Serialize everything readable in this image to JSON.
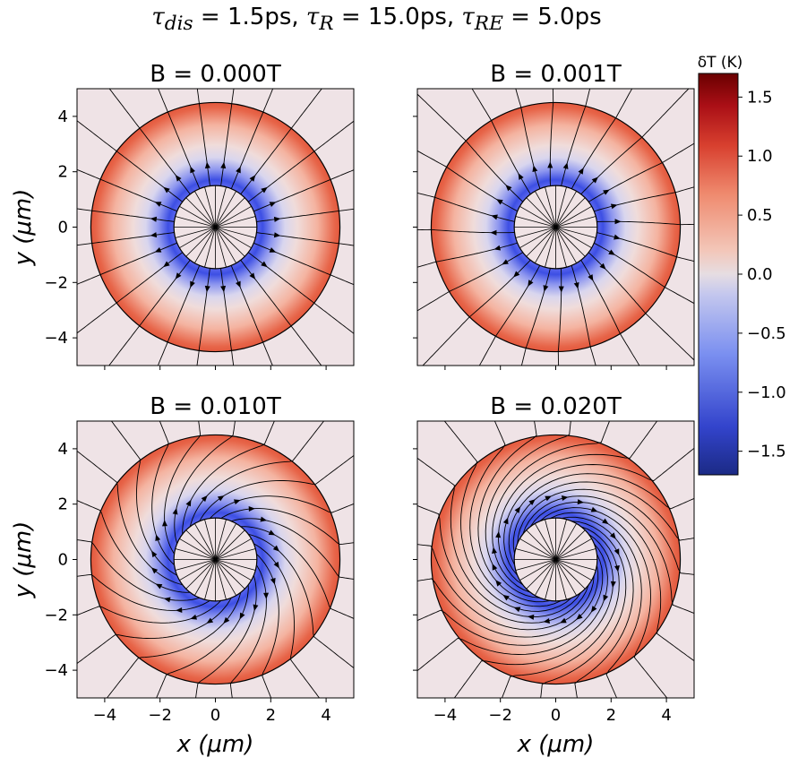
{
  "figure": {
    "suptitle": {
      "dis_sym": "τ",
      "dis_sub": "dis",
      "dis_val": " =  1.5ps, ",
      "r_sym": "τ",
      "r_sub": "R",
      "r_val": " =  15.0ps, ",
      "re_sym": "τ",
      "re_sub": "RE",
      "re_val": " =  5.0ps"
    },
    "xlabel": "x (μm)",
    "ylabel": "y (μm)",
    "colorbar": {
      "label": "δT (K)",
      "ticks": [
        "1.5",
        "1.0",
        "0.5",
        "0.0",
        "−0.5",
        "−1.0",
        "−1.5"
      ]
    },
    "colors": {
      "cold": "#1f33e0",
      "neutral": "#ecdde2",
      "hot": "#e0583f",
      "background": "#efe3e6",
      "lines": "#000000"
    }
  },
  "chart_data": [
    {
      "type": "heatmap",
      "title": "B =  0.000T",
      "B_tesla": 0.0,
      "rotation_factor": 0.0,
      "xlim": [
        -5,
        5
      ],
      "ylim": [
        -5,
        5
      ],
      "xticks": [
        -4,
        -2,
        0,
        2,
        4
      ],
      "yticks": [
        -4,
        -2,
        0,
        2,
        4
      ],
      "inner_radius_um": 1.5,
      "outer_radius_um": 4.5,
      "colorbar_range": [
        -1.7,
        1.7
      ],
      "field": "radial streamlines from inner disk outward; cold ring (~-1.5 K) near r=1.5 μm, warm (~+0.6 K) near r=4.5 μm"
    },
    {
      "type": "heatmap",
      "title": "B =  0.001T",
      "B_tesla": 0.001,
      "rotation_factor": 0.1,
      "xlim": [
        -5,
        5
      ],
      "ylim": [
        -5,
        5
      ],
      "xticks": [
        -4,
        -2,
        0,
        2,
        4
      ],
      "yticks": [
        -4,
        -2,
        0,
        2,
        4
      ],
      "inner_radius_um": 1.5,
      "outer_radius_um": 4.5,
      "colorbar_range": [
        -1.7,
        1.7
      ],
      "field": "nearly radial streamlines with slight twist"
    },
    {
      "type": "heatmap",
      "title": "B =  0.010T",
      "B_tesla": 0.01,
      "rotation_factor": 1.2,
      "xlim": [
        -5,
        5
      ],
      "ylim": [
        -5,
        5
      ],
      "xticks": [
        -4,
        -2,
        0,
        2,
        4
      ],
      "yticks": [
        -4,
        -2,
        0,
        2,
        4
      ],
      "inner_radius_um": 1.5,
      "outer_radius_um": 4.5,
      "colorbar_range": [
        -1.7,
        1.7
      ],
      "field": "spiral streamlines"
    },
    {
      "type": "heatmap",
      "title": "B =  0.020T",
      "B_tesla": 0.02,
      "rotation_factor": 2.6,
      "xlim": [
        -5,
        5
      ],
      "ylim": [
        -5,
        5
      ],
      "xticks": [
        -4,
        -2,
        0,
        2,
        4
      ],
      "yticks": [
        -4,
        -2,
        0,
        2,
        4
      ],
      "inner_radius_um": 1.5,
      "outer_radius_um": 4.5,
      "colorbar_range": [
        -1.7,
        1.7
      ],
      "field": "tightly wound spiral streamlines"
    }
  ]
}
